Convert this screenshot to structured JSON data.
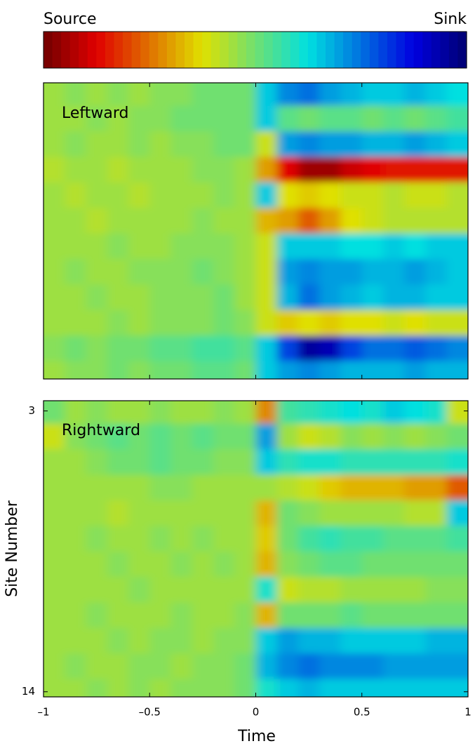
{
  "chart_data": [
    {
      "type": "heatmap",
      "annotation": "Leftward",
      "colormap": "jet",
      "colorbar": {
        "low_label": "Source",
        "high_label": "Sink"
      },
      "zlim": [
        -1,
        1
      ],
      "xlim": [
        -1,
        1
      ],
      "ylim": [
        2.6,
        14.2
      ],
      "y_inverted": true,
      "x": [
        -0.95,
        -0.85,
        -0.75,
        -0.65,
        -0.55,
        -0.45,
        -0.35,
        -0.25,
        -0.15,
        -0.05,
        0.05,
        0.15,
        0.25,
        0.35,
        0.45,
        0.55,
        0.65,
        0.75,
        0.85,
        0.95
      ],
      "y": [
        3,
        4,
        5,
        6,
        7,
        8,
        9,
        10,
        11,
        12,
        13,
        14
      ],
      "z": [
        [
          -0.1,
          -0.05,
          -0.1,
          -0.05,
          -0.1,
          -0.05,
          -0.05,
          0,
          0,
          0,
          0.3,
          0.45,
          0.5,
          0.4,
          0.35,
          0.3,
          0.3,
          0.35,
          0.3,
          0.25
        ],
        [
          -0.1,
          -0.1,
          -0.05,
          -0.1,
          -0.05,
          -0.05,
          0,
          0,
          0,
          0,
          0.3,
          0.05,
          0,
          0.05,
          0.05,
          0,
          0.05,
          0,
          0.05,
          0.1
        ],
        [
          -0.1,
          -0.05,
          -0.1,
          -0.1,
          -0.05,
          -0.1,
          -0.05,
          -0.05,
          0,
          0,
          -0.2,
          0.4,
          0.45,
          0.4,
          0.4,
          0.35,
          0.35,
          0.4,
          0.35,
          0.3
        ],
        [
          -0.15,
          -0.1,
          -0.1,
          -0.15,
          -0.1,
          -0.1,
          -0.1,
          -0.05,
          -0.05,
          -0.1,
          -0.4,
          -0.75,
          -0.9,
          -0.9,
          -0.8,
          -0.75,
          -0.7,
          -0.7,
          -0.7,
          -0.7
        ],
        [
          -0.1,
          -0.15,
          -0.1,
          -0.1,
          -0.15,
          -0.1,
          -0.1,
          -0.1,
          -0.05,
          -0.1,
          0.3,
          -0.25,
          -0.3,
          -0.25,
          -0.2,
          -0.2,
          -0.15,
          -0.2,
          -0.2,
          -0.15
        ],
        [
          -0.1,
          -0.1,
          -0.15,
          -0.1,
          -0.1,
          -0.1,
          -0.1,
          -0.05,
          -0.1,
          -0.1,
          -0.35,
          -0.4,
          -0.55,
          -0.4,
          -0.25,
          -0.2,
          -0.15,
          -0.15,
          -0.15,
          -0.15
        ],
        [
          -0.1,
          -0.1,
          -0.1,
          -0.05,
          -0.1,
          -0.1,
          -0.05,
          -0.05,
          -0.05,
          -0.1,
          -0.2,
          0.3,
          0.3,
          0.3,
          0.25,
          0.25,
          0.3,
          0.25,
          0.3,
          0.3
        ],
        [
          -0.1,
          -0.05,
          -0.1,
          -0.1,
          -0.05,
          -0.05,
          -0.05,
          0,
          -0.05,
          -0.1,
          -0.2,
          0.4,
          0.45,
          0.4,
          0.4,
          0.35,
          0.35,
          0.4,
          0.35,
          0.3
        ],
        [
          -0.1,
          -0.1,
          -0.05,
          -0.1,
          -0.1,
          -0.05,
          -0.05,
          -0.05,
          0,
          -0.1,
          -0.2,
          0.35,
          0.5,
          0.4,
          0.35,
          0.3,
          0.35,
          0.35,
          0.3,
          0.3
        ],
        [
          -0.1,
          -0.1,
          -0.1,
          -0.05,
          -0.1,
          -0.05,
          -0.05,
          -0.05,
          0,
          -0.05,
          -0.2,
          -0.3,
          -0.25,
          -0.3,
          -0.25,
          -0.25,
          -0.2,
          -0.25,
          -0.2,
          -0.2
        ],
        [
          -0.05,
          0,
          -0.05,
          0,
          0,
          0.05,
          0.05,
          0.1,
          0.1,
          0.05,
          0.3,
          0.6,
          0.9,
          0.85,
          0.6,
          0.5,
          0.5,
          0.55,
          0.5,
          0.45
        ],
        [
          -0.1,
          -0.05,
          -0.05,
          0,
          -0.05,
          0,
          0,
          0.05,
          0.05,
          0,
          0.3,
          0.4,
          0.45,
          0.4,
          0.35,
          0.35,
          0.35,
          0.4,
          0.35,
          0.35
        ]
      ]
    },
    {
      "type": "heatmap",
      "annotation": "Rightward",
      "colormap": "jet",
      "x_label": "Time",
      "y_label": "Site Number",
      "zlim": [
        -1,
        1
      ],
      "xlim": [
        -1,
        1
      ],
      "ylim": [
        2.6,
        14.2
      ],
      "y_inverted": true,
      "xticks": [
        {
          "value": -1,
          "label": "–1"
        },
        {
          "value": -0.5,
          "label": "–0.5"
        },
        0,
        0.5,
        1
      ],
      "yticks": [
        3,
        14
      ],
      "x": [
        -0.95,
        -0.85,
        -0.75,
        -0.65,
        -0.55,
        -0.45,
        -0.35,
        -0.25,
        -0.15,
        -0.05,
        0.05,
        0.15,
        0.25,
        0.35,
        0.45,
        0.55,
        0.65,
        0.75,
        0.85,
        0.95
      ],
      "y": [
        3,
        4,
        5,
        6,
        7,
        8,
        9,
        10,
        11,
        12,
        13,
        14
      ],
      "z": [
        [
          0,
          -0.1,
          -0.05,
          -0.1,
          -0.1,
          -0.05,
          -0.1,
          -0.1,
          -0.05,
          -0.1,
          -0.45,
          0.1,
          0.15,
          0.2,
          0.25,
          0.2,
          0.3,
          0.25,
          0.2,
          -0.2
        ],
        [
          -0.2,
          -0.05,
          0,
          0.05,
          0,
          0.05,
          0,
          0.05,
          0,
          0,
          0.4,
          -0.1,
          -0.2,
          -0.15,
          -0.05,
          -0.1,
          -0.05,
          -0.1,
          -0.05,
          0
        ],
        [
          -0.1,
          -0.1,
          -0.05,
          0,
          0,
          0.05,
          0,
          0,
          -0.05,
          -0.05,
          0.3,
          0.15,
          0.2,
          0.2,
          0.15,
          0.15,
          0.15,
          0.15,
          0.15,
          0.2
        ],
        [
          -0.1,
          -0.1,
          -0.1,
          -0.1,
          -0.1,
          -0.05,
          -0.05,
          -0.1,
          -0.1,
          -0.1,
          -0.1,
          -0.15,
          -0.2,
          -0.3,
          -0.35,
          -0.35,
          -0.35,
          -0.4,
          -0.4,
          -0.55
        ],
        [
          -0.1,
          -0.1,
          -0.1,
          -0.15,
          -0.1,
          -0.1,
          -0.1,
          -0.1,
          -0.1,
          -0.1,
          -0.35,
          0,
          -0.05,
          -0.1,
          -0.1,
          -0.1,
          -0.1,
          -0.15,
          -0.15,
          0.3
        ],
        [
          -0.1,
          -0.1,
          -0.05,
          -0.1,
          -0.1,
          -0.05,
          -0.1,
          -0.05,
          -0.1,
          -0.1,
          -0.3,
          0,
          0.1,
          0.15,
          0.1,
          0.1,
          0.05,
          0.05,
          0.05,
          0.1
        ],
        [
          -0.1,
          -0.1,
          -0.1,
          -0.05,
          -0.1,
          -0.1,
          -0.05,
          -0.1,
          -0.05,
          -0.1,
          -0.35,
          -0.05,
          0,
          0.05,
          0.05,
          0,
          0,
          0,
          0,
          0
        ],
        [
          -0.1,
          -0.1,
          -0.1,
          -0.1,
          -0.05,
          -0.1,
          -0.1,
          -0.1,
          -0.1,
          -0.1,
          0.2,
          -0.2,
          -0.15,
          -0.15,
          -0.1,
          -0.1,
          -0.1,
          -0.1,
          -0.05,
          -0.05
        ],
        [
          -0.1,
          -0.1,
          -0.05,
          -0.1,
          -0.1,
          -0.1,
          -0.05,
          -0.1,
          -0.1,
          -0.05,
          -0.35,
          0,
          0,
          0,
          0.05,
          0,
          0,
          0,
          0,
          0
        ],
        [
          -0.1,
          -0.1,
          -0.1,
          -0.05,
          -0.1,
          -0.05,
          -0.05,
          -0.1,
          -0.05,
          -0.05,
          0.3,
          0.4,
          0.35,
          0.35,
          0.3,
          0.3,
          0.3,
          0.3,
          0.35,
          0.35
        ],
        [
          -0.1,
          -0.05,
          -0.1,
          -0.1,
          -0.05,
          -0.05,
          -0.1,
          -0.05,
          -0.05,
          0,
          0.35,
          0.45,
          0.5,
          0.45,
          0.45,
          0.45,
          0.4,
          0.4,
          0.4,
          0.4
        ],
        [
          -0.1,
          -0.1,
          -0.05,
          -0.1,
          -0.05,
          -0.1,
          -0.05,
          -0.05,
          -0.05,
          0,
          0.2,
          0.3,
          0.35,
          0.3,
          0.3,
          0.3,
          0.3,
          0.3,
          0.3,
          0.3
        ]
      ]
    }
  ]
}
